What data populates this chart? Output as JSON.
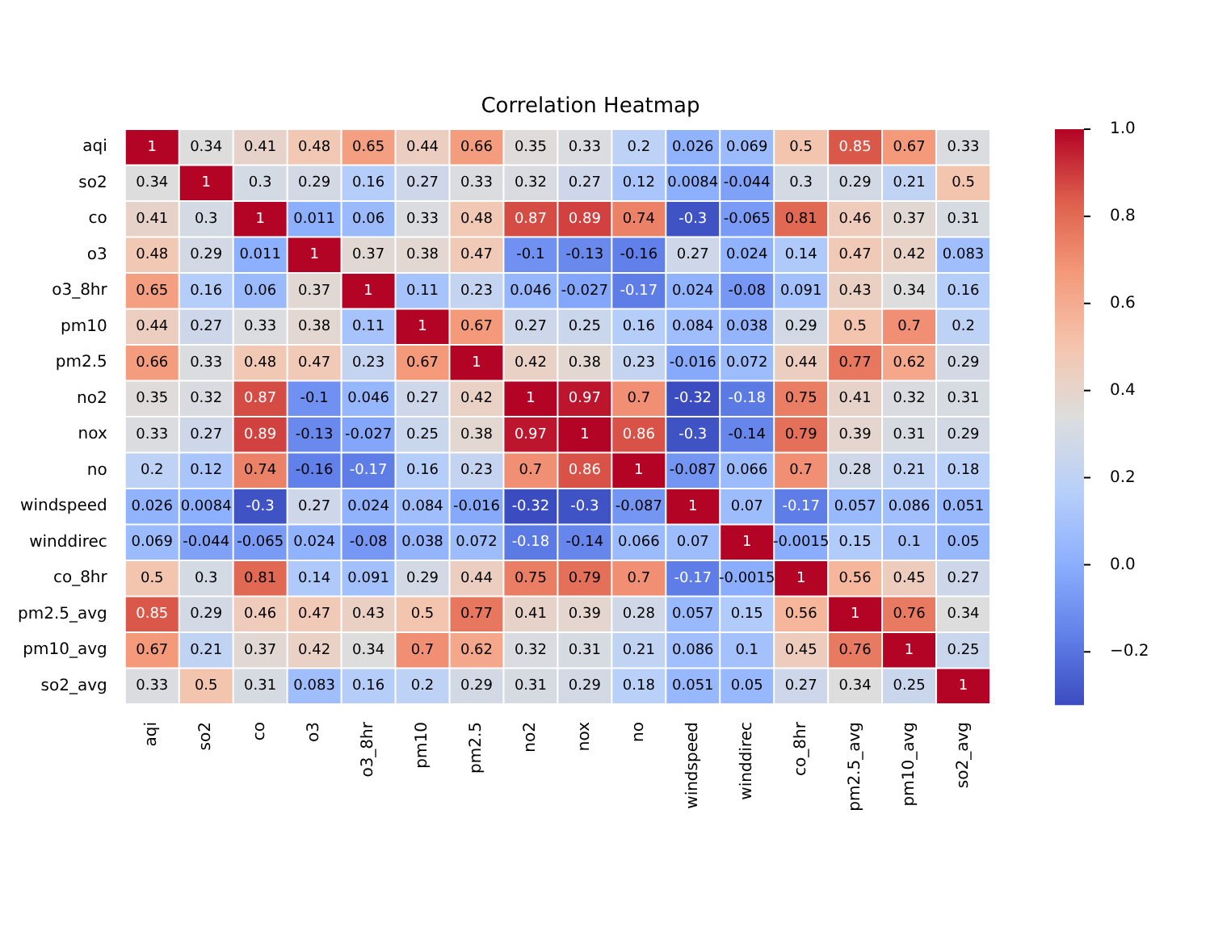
{
  "chart_data": {
    "type": "heatmap",
    "title": "Correlation Heatmap",
    "categories": [
      "aqi",
      "so2",
      "co",
      "o3",
      "o3_8hr",
      "pm10",
      "pm2.5",
      "no2",
      "nox",
      "no",
      "windspeed",
      "winddirec",
      "co_8hr",
      "pm2.5_avg",
      "pm10_avg",
      "so2_avg"
    ],
    "y_categories": [
      "aqi",
      "so2",
      "co",
      "o3",
      "o3_8hr",
      "pm10",
      "pm2.5",
      "no2",
      "nox",
      "no",
      "windspeed",
      "winddirec",
      "co_8hr",
      "pm2.5_avg",
      "pm10_avg",
      "so2_avg"
    ],
    "cells": [
      [
        1,
        0.34,
        0.41,
        0.48,
        0.65,
        0.44,
        0.66,
        0.35,
        0.33,
        0.2,
        0.026,
        0.069,
        0.5,
        0.85,
        0.67,
        0.33
      ],
      [
        0.34,
        1,
        0.3,
        0.29,
        0.16,
        0.27,
        0.33,
        0.32,
        0.27,
        0.12,
        0.0084,
        -0.044,
        0.3,
        0.29,
        0.21,
        0.5
      ],
      [
        0.41,
        0.3,
        1,
        0.011,
        0.06,
        0.33,
        0.48,
        0.87,
        0.89,
        0.74,
        -0.3,
        -0.065,
        0.81,
        0.46,
        0.37,
        0.31
      ],
      [
        0.48,
        0.29,
        0.011,
        1,
        0.37,
        0.38,
        0.47,
        -0.1,
        -0.13,
        -0.16,
        0.27,
        0.024,
        0.14,
        0.47,
        0.42,
        0.083
      ],
      [
        0.65,
        0.16,
        0.06,
        0.37,
        1,
        0.11,
        0.23,
        0.046,
        -0.027,
        -0.17,
        0.024,
        -0.08,
        0.091,
        0.43,
        0.34,
        0.16
      ],
      [
        0.44,
        0.27,
        0.33,
        0.38,
        0.11,
        1,
        0.67,
        0.27,
        0.25,
        0.16,
        0.084,
        0.038,
        0.29,
        0.5,
        0.7,
        0.2
      ],
      [
        0.66,
        0.33,
        0.48,
        0.47,
        0.23,
        0.67,
        1,
        0.42,
        0.38,
        0.23,
        -0.016,
        0.072,
        0.44,
        0.77,
        0.62,
        0.29
      ],
      [
        0.35,
        0.32,
        0.87,
        -0.1,
        0.046,
        0.27,
        0.42,
        1,
        0.97,
        0.7,
        -0.32,
        -0.18,
        0.75,
        0.41,
        0.32,
        0.31
      ],
      [
        0.33,
        0.27,
        0.89,
        -0.13,
        -0.027,
        0.25,
        0.38,
        0.97,
        1,
        0.86,
        -0.3,
        -0.14,
        0.79,
        0.39,
        0.31,
        0.29
      ],
      [
        0.2,
        0.12,
        0.74,
        -0.16,
        -0.17,
        0.16,
        0.23,
        0.7,
        0.86,
        1,
        -0.087,
        0.066,
        0.7,
        0.28,
        0.21,
        0.18
      ],
      [
        0.026,
        0.0084,
        -0.3,
        0.27,
        0.024,
        0.084,
        -0.016,
        -0.32,
        -0.3,
        -0.087,
        1,
        0.07,
        -0.17,
        0.057,
        0.086,
        0.051
      ],
      [
        0.069,
        -0.044,
        -0.065,
        0.024,
        -0.08,
        0.038,
        0.072,
        -0.18,
        -0.14,
        0.066,
        0.07,
        1,
        -0.0015,
        0.15,
        0.1,
        0.05
      ],
      [
        0.5,
        0.3,
        0.81,
        0.14,
        0.091,
        0.29,
        0.44,
        0.75,
        0.79,
        0.7,
        -0.17,
        -0.0015,
        1,
        0.56,
        0.45,
        0.27
      ],
      [
        0.85,
        0.29,
        0.46,
        0.47,
        0.43,
        0.5,
        0.77,
        0.41,
        0.39,
        0.28,
        0.057,
        0.15,
        0.56,
        1,
        0.76,
        0.34
      ],
      [
        0.67,
        0.21,
        0.37,
        0.42,
        0.34,
        0.7,
        0.62,
        0.32,
        0.31,
        0.21,
        0.086,
        0.1,
        0.45,
        0.76,
        1,
        0.25
      ],
      [
        0.33,
        0.5,
        0.31,
        0.083,
        0.16,
        0.2,
        0.29,
        0.31,
        0.29,
        0.18,
        0.051,
        0.05,
        0.27,
        0.34,
        0.25,
        1
      ]
    ],
    "data_labels": true,
    "clim": [
      -0.32,
      1
    ],
    "cticks": [
      {
        "value": -0.2,
        "label": "−0.2"
      },
      {
        "value": 0,
        "label": "0.0"
      },
      {
        "value": 0.2,
        "label": "0.2"
      },
      {
        "value": 0.4,
        "label": "0.4"
      },
      {
        "value": 0.6,
        "label": "0.6"
      },
      {
        "value": 0.8,
        "label": "0.8"
      },
      {
        "value": 1,
        "label": "1.0"
      }
    ]
  }
}
